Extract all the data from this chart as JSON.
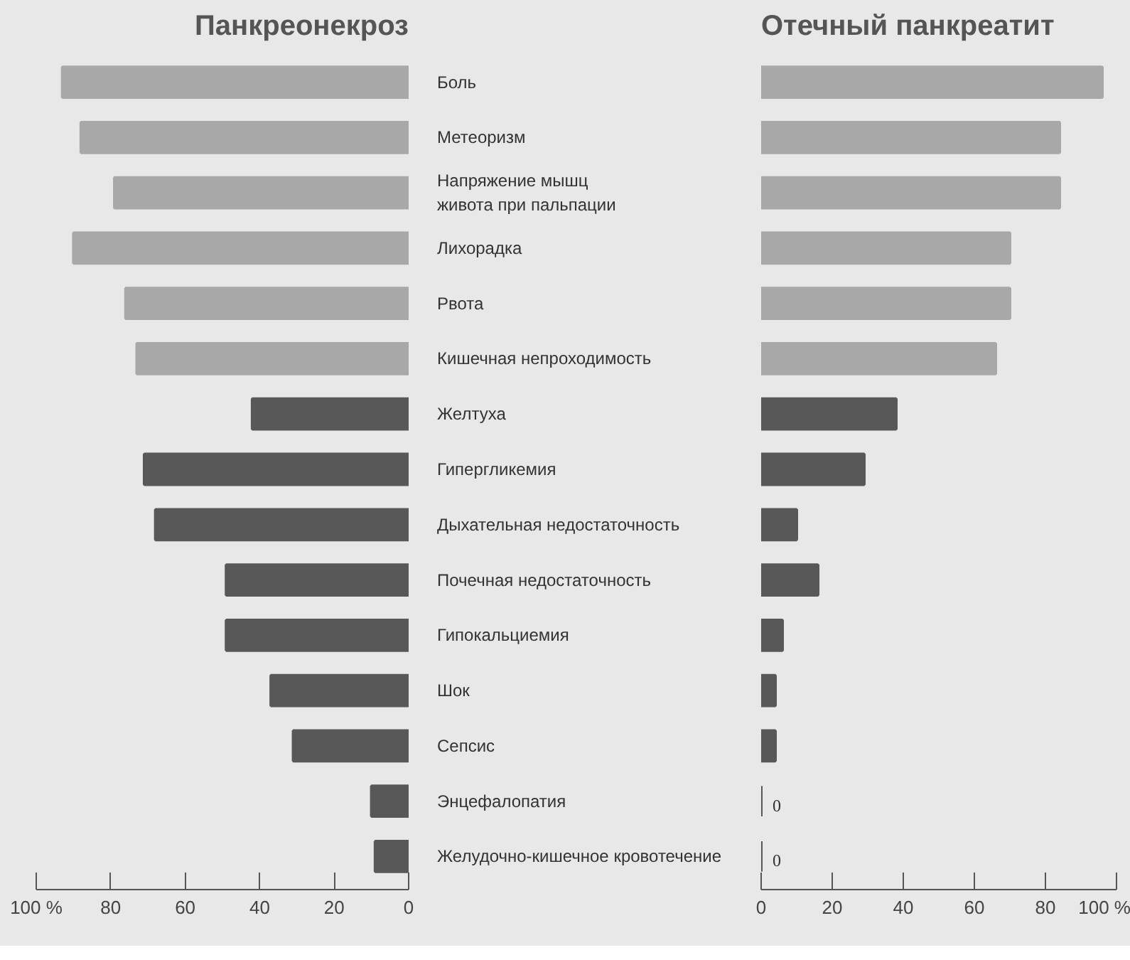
{
  "chart_data": [
    {
      "type": "bar",
      "orientation": "horizontal",
      "title": "Панкреонекроз",
      "categories": [
        "Боль",
        "Метеоризм",
        "Напряжение мышц\nживота при пальпации",
        "Лихорадка",
        "Рвота",
        "Кишечная непроходимость",
        "Желтуха",
        "Гипергликемия",
        "Дыхательная недостаточность",
        "Почечная недостаточность",
        "Гипокальциемия",
        "Шок",
        "Сепсис",
        "Энцефалопатия",
        "Желудочно-кишечное кровотечение"
      ],
      "values": [
        93,
        88,
        79,
        90,
        76,
        73,
        42,
        71,
        68,
        49,
        49,
        37,
        31,
        10,
        9
      ],
      "colors": [
        "#a8a8a8",
        "#a8a8a8",
        "#a8a8a8",
        "#a8a8a8",
        "#a8a8a8",
        "#a8a8a8",
        "#585858",
        "#585858",
        "#585858",
        "#585858",
        "#585858",
        "#585858",
        "#585858",
        "#585858",
        "#585858"
      ],
      "xlim": [
        100,
        0
      ],
      "xticks": [
        {
          "value": 100,
          "label": "100 %"
        },
        80,
        60,
        40,
        20,
        0
      ]
    },
    {
      "type": "bar",
      "orientation": "horizontal",
      "title": "Отечный панкреатит",
      "categories": [
        null,
        null,
        null,
        null,
        null,
        null,
        null,
        null,
        null,
        null,
        null,
        null,
        null,
        null,
        null
      ],
      "values": [
        96,
        84,
        84,
        70,
        70,
        66,
        38,
        29,
        10,
        16,
        6,
        4,
        4,
        0,
        0
      ],
      "colors": [
        "#a8a8a8",
        "#a8a8a8",
        "#a8a8a8",
        "#a8a8a8",
        "#a8a8a8",
        "#a8a8a8",
        "#585858",
        "#585858",
        "#585858",
        "#585858",
        "#585858",
        "#585858",
        "#585858",
        "#585858",
        "#585858"
      ],
      "value_labels": [
        null,
        null,
        null,
        null,
        null,
        null,
        null,
        null,
        null,
        null,
        null,
        null,
        null,
        "0",
        "0"
      ],
      "xlim": [
        0,
        100
      ],
      "xticks": [
        0,
        20,
        40,
        60,
        80,
        {
          "value": 100,
          "label": "100 %"
        }
      ]
    }
  ]
}
